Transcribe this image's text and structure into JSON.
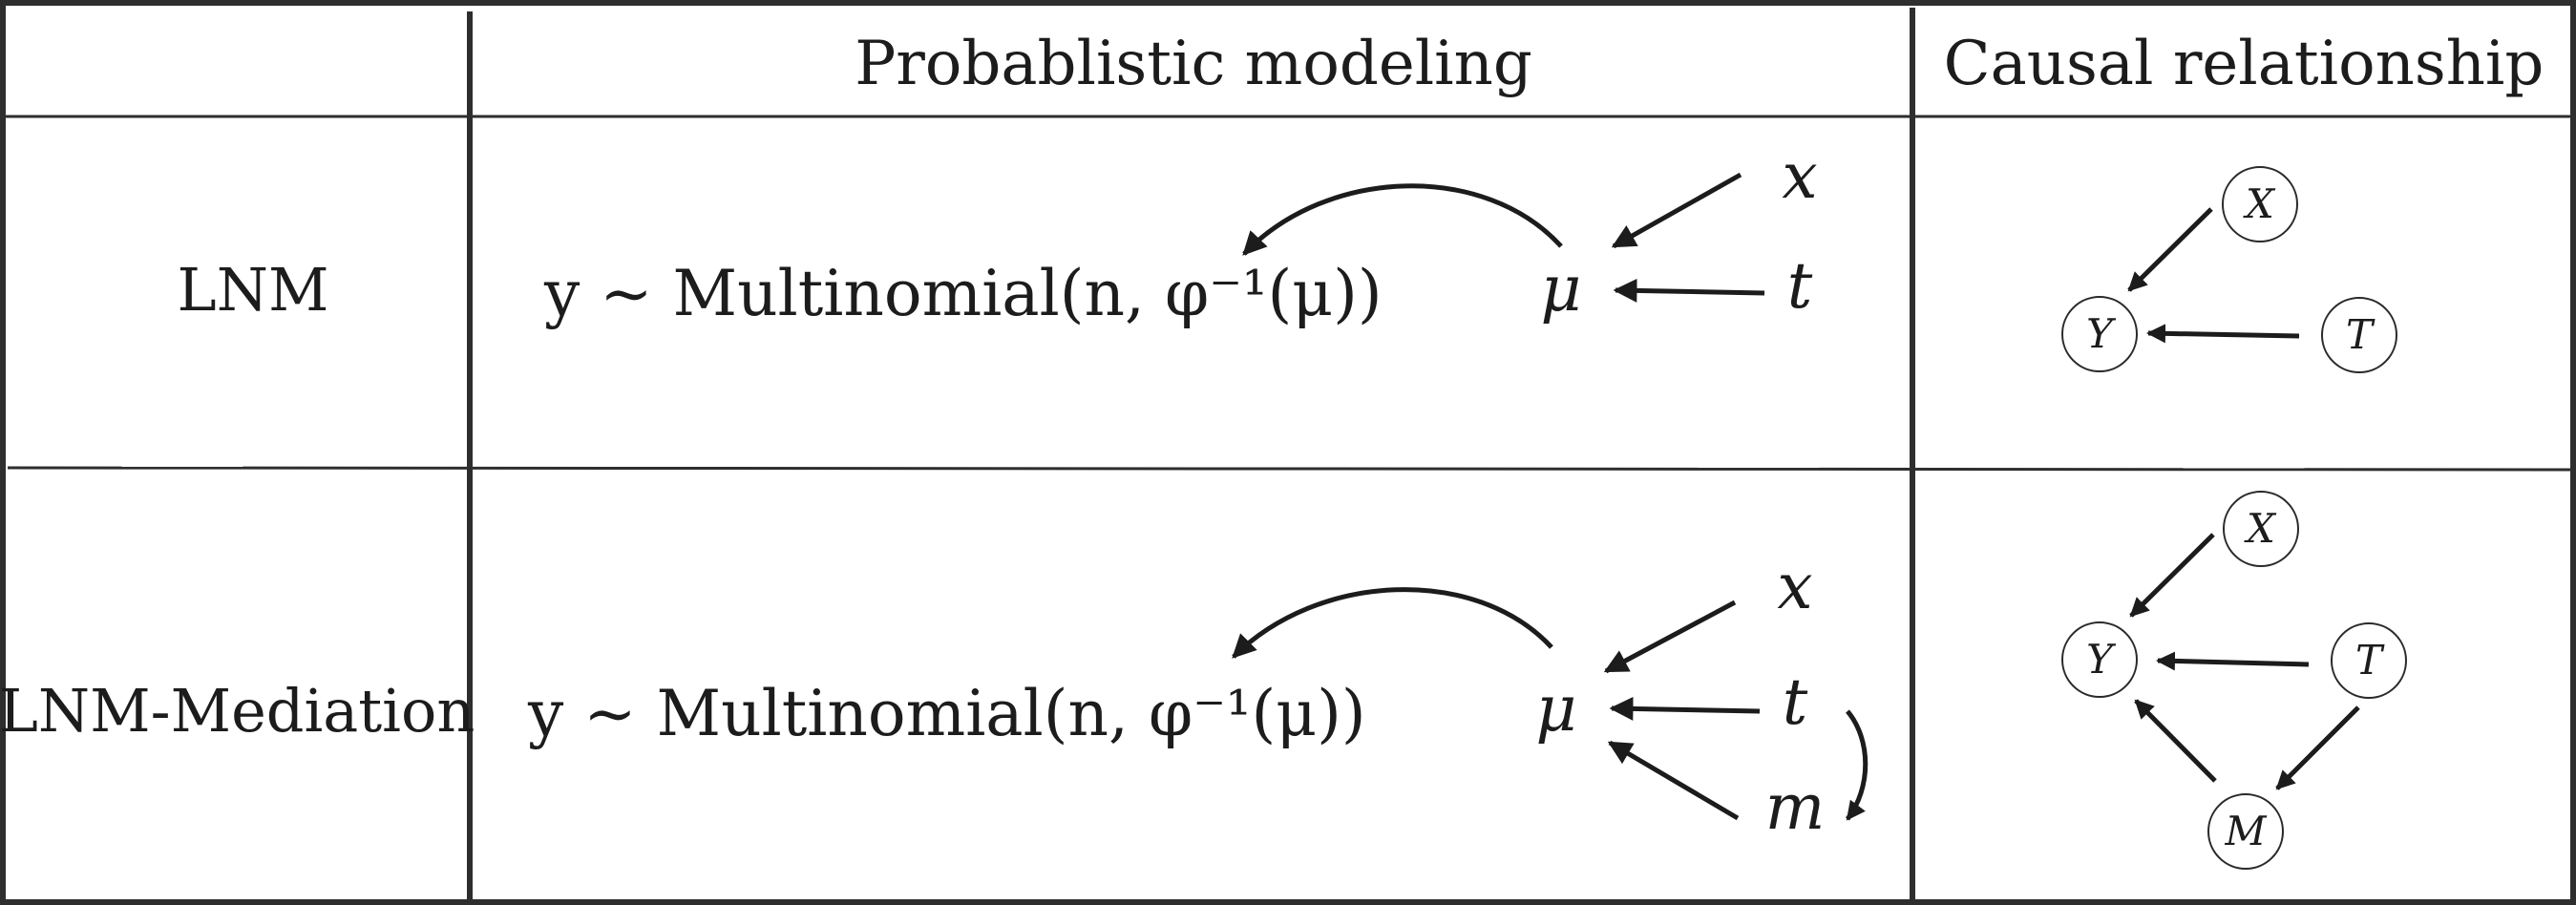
{
  "header": {
    "col_modeling": "Probablistic modeling",
    "col_causal": "Causal relationship"
  },
  "rows": [
    {
      "label": "LNM",
      "equation": "y ∼ Multinomial(n, φ⁻¹(μ))",
      "mu": "μ",
      "inputs": [
        "x",
        "t"
      ],
      "nodes": [
        "X",
        "Y",
        "T"
      ]
    },
    {
      "label": "LNM-Mediation",
      "equation": "y ∼ Multinomial(n, φ⁻¹(μ))",
      "mu": "μ",
      "inputs": [
        "x",
        "t",
        "m"
      ],
      "nodes": [
        "X",
        "Y",
        "T",
        "M"
      ]
    }
  ]
}
